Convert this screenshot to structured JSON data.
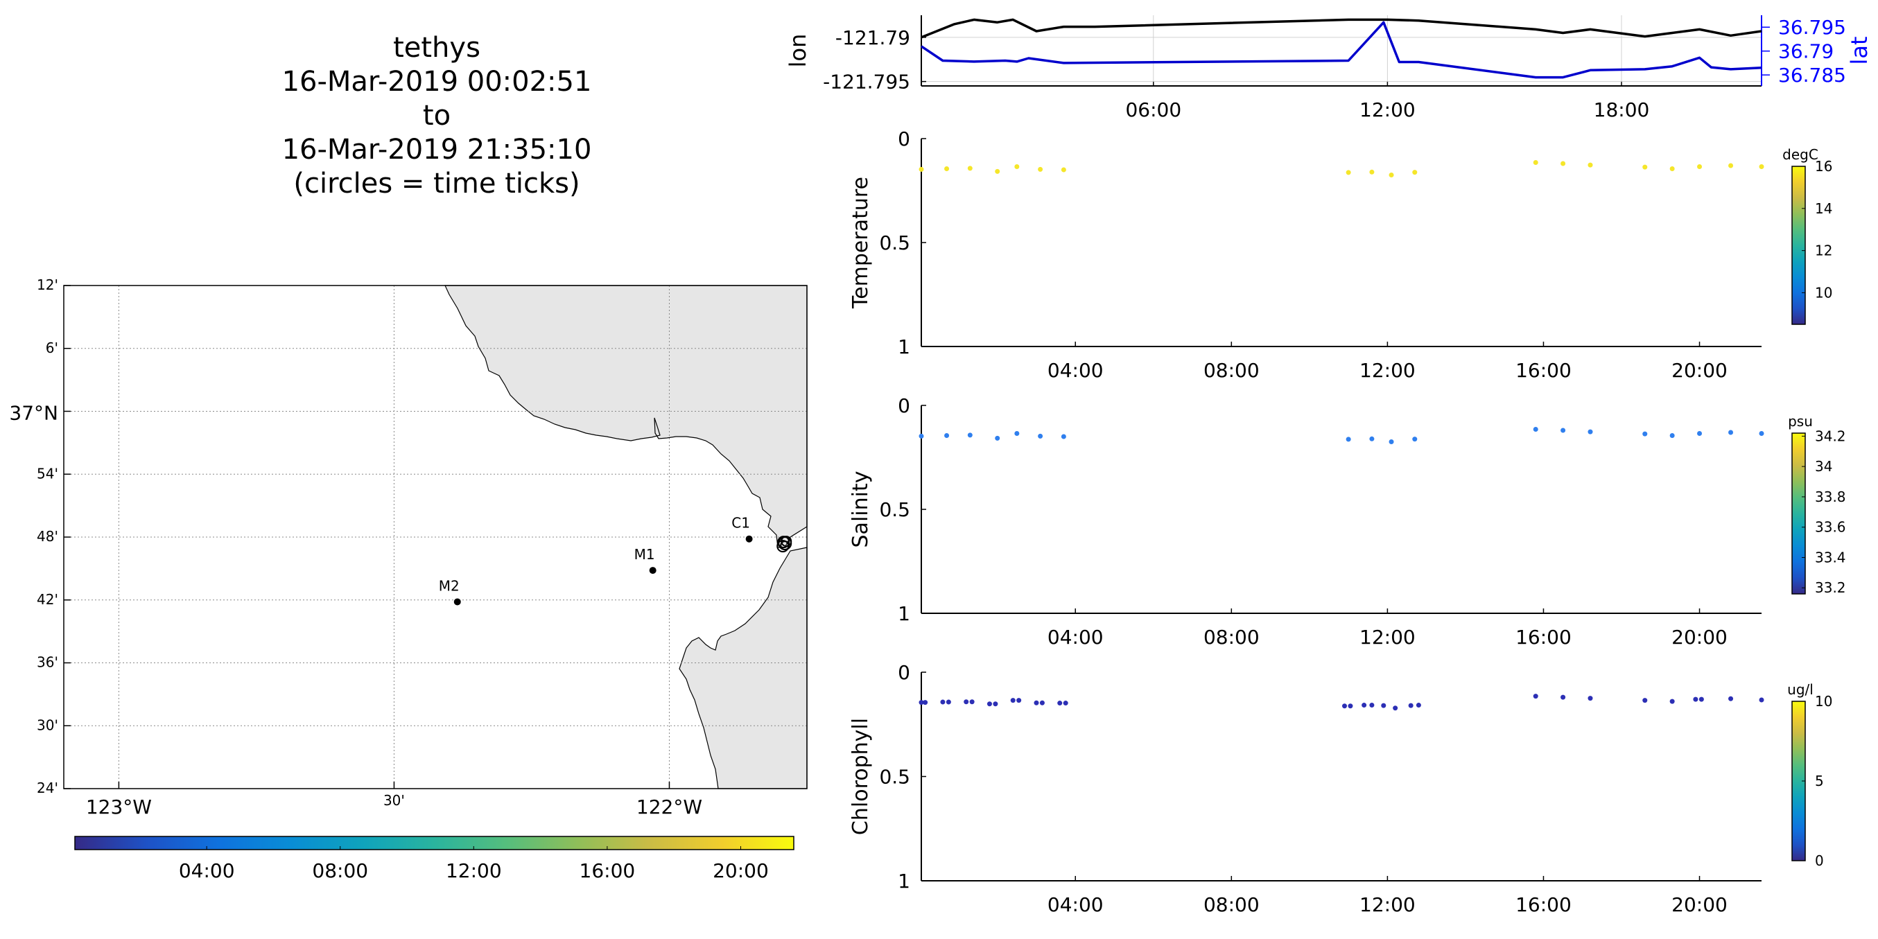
{
  "header": {
    "lines": [
      "tethys",
      "16-Mar-2019 00:02:51",
      "to",
      "16-Mar-2019 21:35:10",
      "(circles = time ticks)"
    ]
  },
  "colors": {
    "land": "#e6e6e6",
    "lon_line": "#000000",
    "lat_line": "#0000cc",
    "lat_axis": "#0000ff",
    "grid": "#888888"
  },
  "map": {
    "lat_ticks": [
      {
        "label": "12'",
        "lat": 37.2
      },
      {
        "label": "6'",
        "lat": 37.1
      },
      {
        "label": "37°N",
        "lat": 37.0,
        "major": true
      },
      {
        "label": "54'",
        "lat": 36.9
      },
      {
        "label": "48'",
        "lat": 36.8
      },
      {
        "label": "42'",
        "lat": 36.7
      },
      {
        "label": "36'",
        "lat": 36.6
      },
      {
        "label": "30'",
        "lat": 36.5
      },
      {
        "label": "24'",
        "lat": 36.4
      }
    ],
    "lon_ticks": [
      {
        "label": "123°W",
        "lon": -123.0,
        "major": true
      },
      {
        "label": "30'",
        "lon": -122.5
      },
      {
        "label": "122°W",
        "lon": -122.0,
        "major": true
      }
    ],
    "lon_range": [
      -123.1,
      -121.75
    ],
    "lat_range": [
      36.4,
      37.2
    ],
    "moorings": [
      {
        "name": "M2",
        "lon": -122.385,
        "lat": 36.697
      },
      {
        "name": "M1",
        "lon": -122.03,
        "lat": 36.747
      },
      {
        "name": "C1",
        "lon": -121.855,
        "lat": 36.797
      }
    ],
    "track": {
      "lon": -121.79,
      "lat": 36.79
    }
  },
  "colorbar": {
    "ticks": [
      "04:00",
      "08:00",
      "12:00",
      "16:00",
      "20:00"
    ],
    "tick_hours": [
      4,
      8,
      12,
      16,
      20
    ],
    "hour_range": [
      0.05,
      21.59
    ]
  },
  "chart_data": [
    {
      "type": "line",
      "name": "track-plot",
      "ylabel": "lon",
      "y2label": "lat",
      "xticks": [
        "06:00",
        "12:00",
        "18:00"
      ],
      "xtick_hours": [
        6,
        12,
        18
      ],
      "xlim": [
        0.05,
        21.59
      ],
      "ylim": [
        -121.7955,
        -121.7875
      ],
      "y_ticks": [
        -121.79,
        -121.795
      ],
      "y_tick_labels": [
        "-121.79",
        "-121.795"
      ],
      "y2lim": [
        36.7827,
        36.7975
      ],
      "y2_ticks": [
        36.795,
        36.79,
        36.785
      ],
      "y2_tick_labels": [
        "36.795",
        "36.79",
        "36.785"
      ],
      "series": [
        {
          "name": "lon",
          "axis": "left",
          "x": [
            0.05,
            0.9,
            1.4,
            2.0,
            2.4,
            3.0,
            3.7,
            4.5,
            11.0,
            12.0,
            12.8,
            15.8,
            16.5,
            17.2,
            18.6,
            19.3,
            20.0,
            20.8,
            21.59
          ],
          "y": [
            -121.79,
            -121.7885,
            -121.788,
            -121.7883,
            -121.788,
            -121.7893,
            -121.7888,
            -121.7888,
            -121.788,
            -121.788,
            -121.7881,
            -121.7891,
            -121.7895,
            -121.7891,
            -121.7899,
            -121.7895,
            -121.7891,
            -121.7898,
            -121.7893
          ]
        },
        {
          "name": "lat",
          "axis": "right",
          "x": [
            0.05,
            0.6,
            1.4,
            2.2,
            2.5,
            2.8,
            3.7,
            11.0,
            11.9,
            12.3,
            12.8,
            15.8,
            16.5,
            17.2,
            18.6,
            19.3,
            20.0,
            20.3,
            20.8,
            21.59
          ],
          "y": [
            36.791,
            36.788,
            36.7878,
            36.788,
            36.7878,
            36.7885,
            36.7875,
            36.788,
            36.796,
            36.7877,
            36.7877,
            36.7845,
            36.7845,
            36.786,
            36.7862,
            36.7868,
            36.7886,
            36.7866,
            36.7862,
            36.7865
          ]
        }
      ]
    },
    {
      "type": "scatter",
      "name": "temperature",
      "ylabel": "Temperature",
      "xticks": [
        "04:00",
        "08:00",
        "12:00",
        "16:00",
        "20:00"
      ],
      "xtick_hours": [
        4,
        8,
        12,
        16,
        20
      ],
      "xlim": [
        0.05,
        21.59
      ],
      "ylim": [
        0,
        1
      ],
      "y_ticks": [
        0,
        0.5,
        1
      ],
      "y_tick_labels": [
        "0",
        "0.5",
        "1"
      ],
      "x": [
        0.05,
        0.7,
        1.3,
        2.0,
        2.5,
        3.1,
        3.7,
        11.0,
        11.6,
        12.1,
        12.7,
        15.8,
        16.5,
        17.2,
        18.6,
        19.3,
        20.0,
        20.8,
        21.59
      ],
      "y": [
        0.148,
        0.145,
        0.143,
        0.158,
        0.135,
        0.148,
        0.15,
        0.163,
        0.161,
        0.175,
        0.162,
        0.115,
        0.12,
        0.127,
        0.137,
        0.145,
        0.135,
        0.13,
        0.135
      ],
      "marker_color": "#f5e62a",
      "colorbar": {
        "unit": "degC",
        "ticks": [
          16,
          14,
          12,
          10
        ],
        "range": [
          8.5,
          16
        ]
      }
    },
    {
      "type": "scatter",
      "name": "salinity",
      "ylabel": "Salinity",
      "xticks": [
        "04:00",
        "08:00",
        "12:00",
        "16:00",
        "20:00"
      ],
      "xtick_hours": [
        4,
        8,
        12,
        16,
        20
      ],
      "xlim": [
        0.05,
        21.59
      ],
      "ylim": [
        0,
        1
      ],
      "y_ticks": [
        0,
        0.5,
        1
      ],
      "y_tick_labels": [
        "0",
        "0.5",
        "1"
      ],
      "x": [
        0.05,
        0.7,
        1.3,
        2.0,
        2.5,
        3.1,
        3.7,
        11.0,
        11.6,
        12.1,
        12.7,
        15.8,
        16.5,
        17.2,
        18.6,
        19.3,
        20.0,
        20.8,
        21.59
      ],
      "y": [
        0.148,
        0.145,
        0.143,
        0.158,
        0.135,
        0.148,
        0.15,
        0.163,
        0.161,
        0.175,
        0.162,
        0.115,
        0.12,
        0.127,
        0.137,
        0.145,
        0.135,
        0.13,
        0.135
      ],
      "marker_color": "#2f7fee",
      "colorbar": {
        "unit": "psu",
        "ticks": [
          34.2,
          34,
          33.8,
          33.6,
          33.4,
          33.2
        ],
        "range": [
          33.16,
          34.22
        ]
      }
    },
    {
      "type": "scatter",
      "name": "chlorophyll",
      "ylabel": "Chlorophyll",
      "xticks": [
        "04:00",
        "08:00",
        "12:00",
        "16:00",
        "20:00"
      ],
      "xtick_hours": [
        4,
        8,
        12,
        16,
        20
      ],
      "xlim": [
        0.05,
        21.59
      ],
      "ylim": [
        0,
        1
      ],
      "y_ticks": [
        0,
        0.5,
        1
      ],
      "y_tick_labels": [
        "0",
        "0.5",
        "1"
      ],
      "x": [
        0.05,
        0.15,
        0.6,
        0.75,
        1.2,
        1.35,
        1.8,
        1.95,
        2.4,
        2.55,
        3.0,
        3.15,
        3.6,
        3.75,
        10.9,
        11.05,
        11.4,
        11.6,
        11.9,
        12.2,
        12.6,
        12.8,
        15.8,
        16.5,
        17.2,
        18.6,
        19.3,
        19.9,
        20.05,
        20.8,
        21.59
      ],
      "y": [
        0.145,
        0.145,
        0.143,
        0.143,
        0.142,
        0.142,
        0.152,
        0.152,
        0.135,
        0.135,
        0.147,
        0.147,
        0.148,
        0.148,
        0.162,
        0.162,
        0.158,
        0.158,
        0.16,
        0.172,
        0.16,
        0.158,
        0.115,
        0.12,
        0.125,
        0.135,
        0.14,
        0.13,
        0.13,
        0.127,
        0.133
      ],
      "marker_color": "#2c2fb5",
      "colorbar": {
        "unit": "ug/l",
        "ticks": [
          10,
          5,
          0
        ],
        "range": [
          0,
          10
        ]
      }
    }
  ]
}
